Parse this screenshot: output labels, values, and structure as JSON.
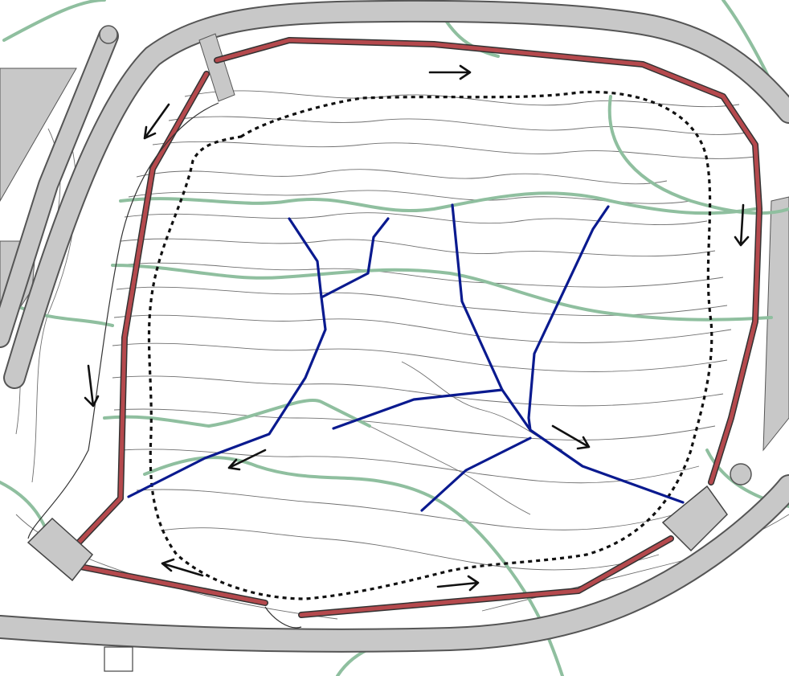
{
  "colors": {
    "background": "#ffffff",
    "contour_minor": "#6f6f6f",
    "contour_index": "#8fbf9f",
    "road_fill": "#c8c8c8",
    "road_edge": "#555555",
    "berm_fill": "#b5494d",
    "drainage": "#0a1a8f",
    "boundary": "#111111",
    "arrow": "#111111"
  },
  "legend_items": [],
  "features": {
    "flow_arrows": [
      {
        "name": "flow-arrow-north",
        "direction": "east"
      },
      {
        "name": "flow-arrow-northwest",
        "direction": "southwest"
      },
      {
        "name": "flow-arrow-west",
        "direction": "south"
      },
      {
        "name": "flow-arrow-east",
        "direction": "south"
      },
      {
        "name": "flow-arrow-center-left",
        "direction": "southwest"
      },
      {
        "name": "flow-arrow-center-right",
        "direction": "southeast"
      },
      {
        "name": "flow-arrow-southwest",
        "direction": "west"
      },
      {
        "name": "flow-arrow-south",
        "direction": "east"
      }
    ],
    "icons": [
      "berm-end-structure-icon",
      "culvert-icon"
    ]
  }
}
